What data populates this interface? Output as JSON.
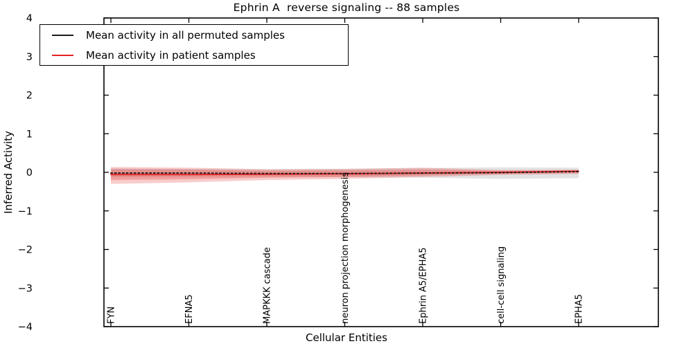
{
  "title": "Ephrin A  reverse signaling -- 88 samples",
  "colors": {
    "permuted_line": "#1a1a1a",
    "patient_line": "#e62222",
    "permuted_band": "#999999",
    "patient_band": "#e53935",
    "axis": "#000000"
  },
  "chart_data": {
    "type": "line",
    "title": "Ephrin A  reverse signaling -- 88 samples",
    "xlabel": "Cellular Entities",
    "ylabel": "Inferred Activity",
    "ylim": [
      -4,
      4
    ],
    "yticks": [
      4,
      3,
      2,
      1,
      0,
      -1,
      -2,
      -3,
      -4
    ],
    "grid": false,
    "legend_position": "upper left",
    "categories": [
      "FYN",
      "EFNA5",
      "MAPKKK cascade",
      "neuron projection morphogenesis",
      "Ephrin A5/EPHA5",
      "cell-cell signaling",
      "EPHA5"
    ],
    "series": [
      {
        "name": "Mean activity in all permuted samples",
        "color": "#1a1a1a",
        "line_style": "dashed",
        "mean": [
          -0.02,
          -0.02,
          -0.03,
          -0.03,
          -0.02,
          -0.01,
          0.02
        ],
        "band_upper": [
          0.1,
          0.09,
          0.08,
          0.09,
          0.11,
          0.13,
          0.12
        ],
        "band_lower": [
          -0.13,
          -0.12,
          -0.11,
          -0.12,
          -0.14,
          -0.17,
          -0.15
        ],
        "band_color": "#999999",
        "band_opacity": 0.28
      },
      {
        "name": "Mean activity in patient samples",
        "color": "#e62222",
        "line_style": "solid",
        "mean": [
          -0.06,
          -0.06,
          -0.05,
          -0.04,
          -0.02,
          0.0,
          0.03
        ],
        "band_upper": [
          0.14,
          0.12,
          0.08,
          0.09,
          0.12,
          0.06,
          0.07
        ],
        "band_lower": [
          -0.3,
          -0.26,
          -0.2,
          -0.17,
          -0.12,
          -0.07,
          -0.04
        ],
        "band_inner_upper": [
          0.08,
          0.07,
          0.04,
          0.05,
          0.07,
          0.04,
          0.05
        ],
        "band_inner_lower": [
          -0.2,
          -0.18,
          -0.14,
          -0.12,
          -0.08,
          -0.04,
          -0.02
        ],
        "band_color": "#e53935",
        "band_opacity": 0.25,
        "band_inner_opacity": 0.3
      }
    ]
  }
}
